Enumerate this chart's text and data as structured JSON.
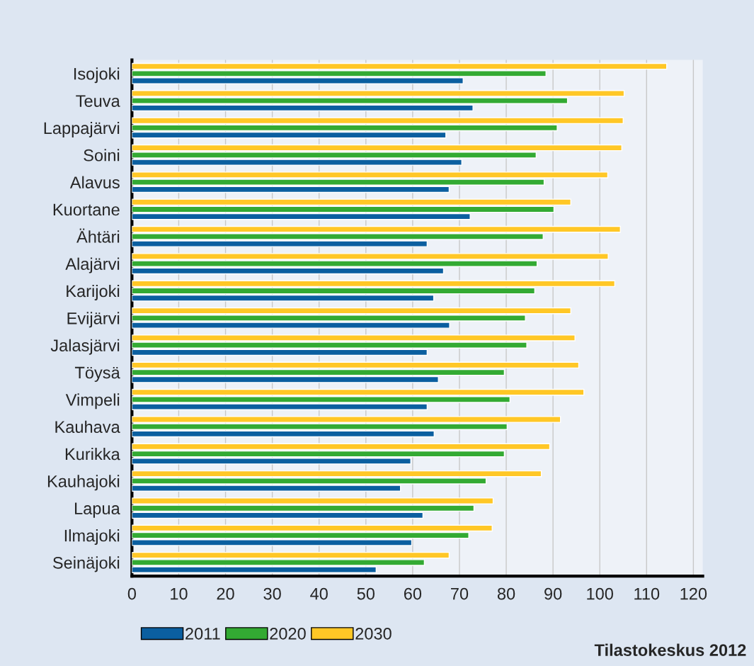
{
  "chart_data": {
    "type": "bar",
    "orientation": "horizontal",
    "categories": [
      "Isojoki",
      "Teuva",
      "Lappajärvi",
      "Soini",
      "Alavus",
      "Kuortane",
      "Ähtäri",
      "Alajärvi",
      "Karijoki",
      "Evijärvi",
      "Jalasjärvi",
      "Töysä",
      "Vimpeli",
      "Kauhava",
      "Kurikka",
      "Kauhajoki",
      "Lapua",
      "Ilmajoki",
      "Seinäjoki"
    ],
    "series": [
      {
        "name": "2011",
        "color": "#0b5fa0",
        "values": [
          70.8,
          72.9,
          67.1,
          70.5,
          67.8,
          72.3,
          63.1,
          66.6,
          64.5,
          67.9,
          63.1,
          65.5,
          63.1,
          64.6,
          59.6,
          57.4,
          62.2,
          59.8,
          52.2
        ]
      },
      {
        "name": "2020",
        "color": "#33aa33",
        "values": [
          88.5,
          93.1,
          90.9,
          86.4,
          88.1,
          90.2,
          87.9,
          86.6,
          86.1,
          84.1,
          84.4,
          79.6,
          80.8,
          80.2,
          79.6,
          75.7,
          73.1,
          72.0,
          62.5
        ]
      },
      {
        "name": "2030",
        "color": "#ffc726",
        "values": [
          114.3,
          105.2,
          105.0,
          104.7,
          101.7,
          93.8,
          104.4,
          101.8,
          103.2,
          93.8,
          94.7,
          95.5,
          96.6,
          91.6,
          89.3,
          87.5,
          77.2,
          77.0,
          67.8
        ]
      }
    ],
    "xlim": [
      0,
      122
    ],
    "xticks": [
      0,
      10,
      20,
      30,
      40,
      50,
      60,
      70,
      80,
      90,
      100,
      110,
      120
    ],
    "grid": "x",
    "legend": "bottom",
    "annotations": [
      "Tilastokeskus 2012"
    ]
  }
}
